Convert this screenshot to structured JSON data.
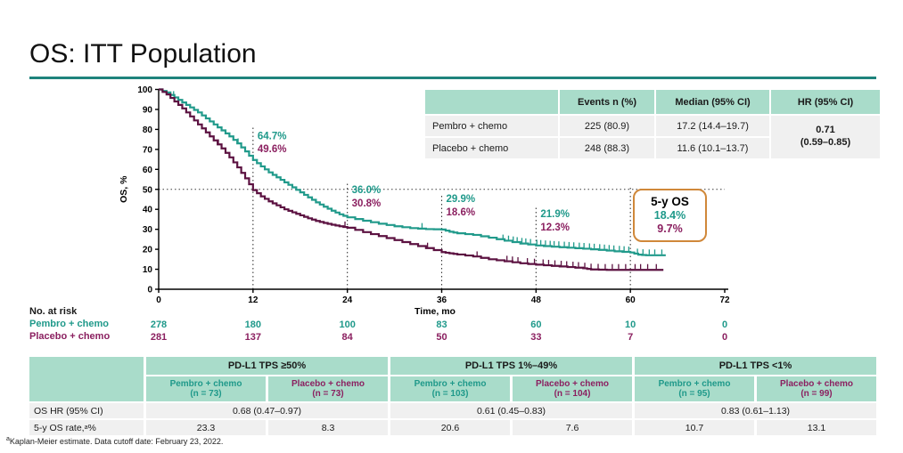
{
  "slide": {
    "title": "OS: ITT Population",
    "accent_underline_color": "#1e837c",
    "footnote_sup": "a",
    "footnote_text": "Kaplan-Meier estimate.  Data cutoff date: February 23, 2022."
  },
  "summary_table": {
    "headers": [
      "",
      "Events n (%)",
      "Median (95% CI)",
      "HR (95% CI)"
    ],
    "rows": [
      {
        "label": "Pembro + chemo",
        "events": "225 (80.9)",
        "median": "17.2 (14.4–19.7)"
      },
      {
        "label": "Placebo + chemo",
        "events": "248 (88.3)",
        "median": "11.6 (10.1–13.7)"
      }
    ],
    "hr_line1": "0.71",
    "hr_line2": "(0.59–0.85)"
  },
  "chart_data": {
    "type": "line",
    "subtype": "kaplan-meier",
    "title": "",
    "xlabel": "Time, mo",
    "ylabel": "OS, %",
    "xlim": [
      0,
      72
    ],
    "xticks": [
      0,
      12,
      24,
      36,
      48,
      60,
      72
    ],
    "ylim": [
      0,
      100
    ],
    "yticks": [
      0,
      10,
      20,
      30,
      40,
      50,
      60,
      70,
      80,
      90,
      100
    ],
    "grid": false,
    "reference_line_pct": 50,
    "series": [
      {
        "name": "Pembro + chemo",
        "color": "#219a8b",
        "text_color": "#1f998a",
        "points": [
          [
            0,
            100
          ],
          [
            1,
            98.5
          ],
          [
            2,
            96
          ],
          [
            3,
            93.5
          ],
          [
            4,
            91
          ],
          [
            5,
            88.5
          ],
          [
            6,
            85.5
          ],
          [
            7,
            82.5
          ],
          [
            8,
            79.5
          ],
          [
            9,
            76.5
          ],
          [
            10,
            73
          ],
          [
            11,
            69
          ],
          [
            12,
            64.7
          ],
          [
            13,
            61.5
          ],
          [
            14,
            58.5
          ],
          [
            15,
            56
          ],
          [
            16,
            53.5
          ],
          [
            17,
            51
          ],
          [
            18,
            48.5
          ],
          [
            19,
            46
          ],
          [
            20,
            43.5
          ],
          [
            21,
            41.3
          ],
          [
            22,
            39.3
          ],
          [
            23,
            37.5
          ],
          [
            24,
            36
          ],
          [
            26,
            34.3
          ],
          [
            28,
            32.8
          ],
          [
            30,
            31.5
          ],
          [
            32,
            30.6
          ],
          [
            34,
            30.1
          ],
          [
            36,
            29.9
          ],
          [
            37,
            28.8
          ],
          [
            38,
            28
          ],
          [
            40,
            27.2
          ],
          [
            42,
            25.8
          ],
          [
            44,
            24.3
          ],
          [
            46,
            22.9
          ],
          [
            48,
            21.9
          ],
          [
            50,
            21.3
          ],
          [
            52,
            20.8
          ],
          [
            54,
            20.3
          ],
          [
            56,
            19.7
          ],
          [
            58,
            19
          ],
          [
            60,
            18.4
          ],
          [
            61,
            17.3
          ],
          [
            62,
            17
          ],
          [
            64.5,
            17
          ]
        ],
        "censor_times": [
          1.9,
          10.1,
          33.5,
          43.8,
          44.5,
          45.1,
          45.6,
          46.2,
          46.7,
          47.3,
          48.1,
          48.6,
          49.2,
          49.8,
          50.3,
          50.9,
          51.6,
          52.2,
          52.8,
          53.5,
          54.1,
          54.8,
          55.4,
          56.1,
          56.7,
          57.3,
          57.9,
          58.6,
          59.2,
          59.8,
          60.9,
          61.6,
          62.4,
          63.1,
          64
        ]
      },
      {
        "name": "Placebo + chemo",
        "color": "#5c1241",
        "text_color": "#8b2060",
        "points": [
          [
            0,
            100
          ],
          [
            1,
            97.5
          ],
          [
            2,
            94
          ],
          [
            3,
            90.5
          ],
          [
            4,
            86.5
          ],
          [
            5,
            82.5
          ],
          [
            6,
            78.5
          ],
          [
            7,
            74.5
          ],
          [
            8,
            70.5
          ],
          [
            9,
            66
          ],
          [
            10,
            61
          ],
          [
            11,
            55.5
          ],
          [
            12,
            49.6
          ],
          [
            13,
            46.5
          ],
          [
            14,
            44
          ],
          [
            15,
            42
          ],
          [
            16,
            40
          ],
          [
            17,
            38.5
          ],
          [
            18,
            37
          ],
          [
            19,
            35.5
          ],
          [
            20,
            34.2
          ],
          [
            21,
            33.2
          ],
          [
            22,
            32.3
          ],
          [
            23,
            31.5
          ],
          [
            24,
            30.8
          ],
          [
            26,
            28.6
          ],
          [
            28,
            26.6
          ],
          [
            30,
            24.6
          ],
          [
            32,
            22.6
          ],
          [
            34,
            20.6
          ],
          [
            36,
            18.6
          ],
          [
            37,
            18
          ],
          [
            38,
            17.4
          ],
          [
            40,
            16.4
          ],
          [
            42,
            15
          ],
          [
            44,
            14
          ],
          [
            46,
            13
          ],
          [
            48,
            12.3
          ],
          [
            50,
            11.7
          ],
          [
            52,
            11.1
          ],
          [
            54,
            10.5
          ],
          [
            55,
            9.9
          ],
          [
            57,
            9.7
          ],
          [
            64.2,
            9.7
          ]
        ],
        "censor_times": [
          7.6,
          23.7,
          34.2,
          40.5,
          44.3,
          45,
          45.7,
          46.9,
          47.8,
          48.9,
          49.6,
          50.4,
          51.2,
          51.9,
          52.7,
          53.4,
          54.2,
          55,
          55.9,
          56.8,
          57.7,
          58.5,
          59.4,
          60.6,
          61.3,
          62.2,
          63.3
        ]
      }
    ],
    "milestones": [
      {
        "t": 12,
        "line_top_pct": 81,
        "labels": [
          {
            "text": "64.7%",
            "series": 0,
            "y_pct": 75
          },
          {
            "text": "49.6%",
            "series": 1,
            "y_pct": 68.5
          }
        ]
      },
      {
        "t": 24,
        "line_top_pct": 54,
        "labels": [
          {
            "text": "36.0%",
            "series": 0,
            "y_pct": 48
          },
          {
            "text": "30.8%",
            "series": 1,
            "y_pct": 41.4
          }
        ]
      },
      {
        "t": 36,
        "line_top_pct": 47.5,
        "labels": [
          {
            "text": "29.9%",
            "series": 0,
            "y_pct": 43.6
          },
          {
            "text": "18.6%",
            "series": 1,
            "y_pct": 37
          }
        ]
      },
      {
        "t": 48,
        "line_top_pct": 41.4,
        "labels": [
          {
            "text": "21.9%",
            "series": 0,
            "y_pct": 36.1
          },
          {
            "text": "12.3%",
            "series": 1,
            "y_pct": 29.4
          }
        ]
      },
      {
        "t": 60,
        "line_top_pct": 52,
        "labels": []
      }
    ],
    "five_year_box": {
      "title": "5-y OS",
      "values": [
        {
          "text": "18.4%",
          "series": 0
        },
        {
          "text": "9.7%",
          "series": 1
        }
      ],
      "border_color": "#d0883a"
    }
  },
  "risk_table": {
    "label": "No. at risk",
    "rows": [
      {
        "name": "Pembro + chemo",
        "values": [
          "278",
          "180",
          "100",
          "83",
          "60",
          "10",
          "0"
        ]
      },
      {
        "name": "Placebo + chemo",
        "values": [
          "281",
          "137",
          "84",
          "50",
          "33",
          "7",
          "0"
        ]
      }
    ]
  },
  "subgroup_table": {
    "row_labels": {
      "os_hr": "OS HR (95% CI)",
      "rate_prefix": "5-y OS rate,",
      "rate_sup": "a",
      "rate_suffix": " %"
    },
    "groups": [
      {
        "label": "PD-L1 TPS ≥50%",
        "cols": [
          {
            "name": "Pembro + chemo",
            "n": "(n = 73)"
          },
          {
            "name": "Placebo + chemo",
            "n": "(n = 73)"
          }
        ],
        "os_hr": "0.68 (0.47–0.97)",
        "rates": [
          "23.3",
          "8.3"
        ]
      },
      {
        "label": "PD-L1 TPS 1%–49%",
        "cols": [
          {
            "name": "Pembro + chemo",
            "n": "(n = 103)"
          },
          {
            "name": "Placebo + chemo",
            "n": "(n = 104)"
          }
        ],
        "os_hr": "0.61 (0.45–0.83)",
        "rates": [
          "20.6",
          "7.6"
        ]
      },
      {
        "label": "PD-L1 TPS <1%",
        "cols": [
          {
            "name": "Pembro + chemo",
            "n": "(n = 95)"
          },
          {
            "name": "Placebo + chemo",
            "n": "(n = 99)"
          }
        ],
        "os_hr": "0.83 (0.61–1.13)",
        "rates": [
          "10.7",
          "13.1"
        ]
      }
    ]
  }
}
